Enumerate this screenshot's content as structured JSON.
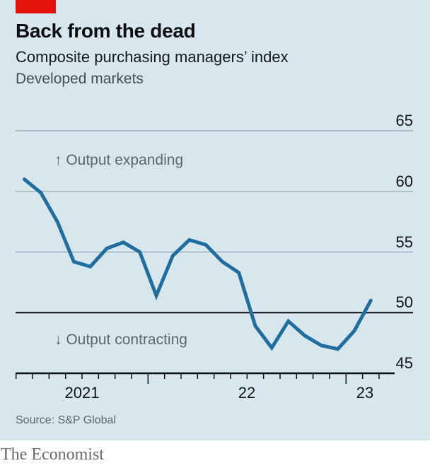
{
  "brand": {
    "red_tab_color": "#e3120b",
    "footer": "The Economist"
  },
  "header": {
    "title": "Back from the dead",
    "subtitle": "Composite purchasing managers’ index",
    "note": "Developed markets"
  },
  "source": "Source: S&P Global",
  "chart_data": {
    "type": "line",
    "title": "Back from the dead",
    "subtitle": "Composite purchasing managers’ index",
    "series_note": "Developed markets",
    "x": [
      "May 2021",
      "Jun 2021",
      "Jul 2021",
      "Aug 2021",
      "Sep 2021",
      "Oct 2021",
      "Nov 2021",
      "Dec 2021",
      "Jan 2022",
      "Feb 2022",
      "Mar 2022",
      "Apr 2022",
      "May 2022",
      "Jun 2022",
      "Jul 2022",
      "Aug 2022",
      "Sep 2022",
      "Oct 2022",
      "Nov 2022",
      "Dec 2022",
      "Jan 2023",
      "Feb 2023"
    ],
    "values": [
      61.0,
      59.9,
      57.5,
      54.2,
      53.8,
      55.3,
      55.8,
      55.0,
      51.4,
      54.7,
      56.0,
      55.6,
      54.2,
      53.3,
      48.9,
      47.1,
      49.3,
      48.1,
      47.3,
      47.0,
      48.5,
      51.0
    ],
    "ylim": [
      45,
      65
    ],
    "yticks": [
      65,
      60,
      55,
      50,
      45
    ],
    "threshold": 50,
    "xticklabels": [
      "2021",
      "22",
      "23"
    ],
    "annotations": [
      "↑ Output expanding",
      "↓ Output contracting"
    ],
    "line_color": "#1f6e9e",
    "grid_color": "#a2b3bb",
    "axis_color": "#0e0f10",
    "background_color": "#d8e7ee",
    "legend": "none",
    "grid": "horizontal, labels on right, 50 threshold drawn in black"
  }
}
